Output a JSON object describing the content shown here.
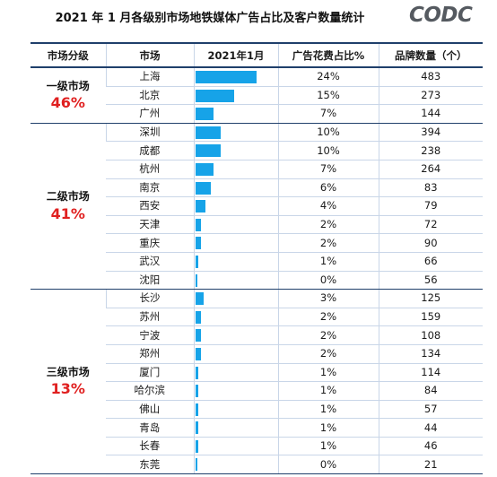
{
  "title": "2021 年 1 月各级别市场地铁媒体广告占比及客户数量统计",
  "logo": "CODC",
  "colors": {
    "bar": "#16a3e8",
    "tier_pct": "#e02020",
    "rule": "#1f3f6b"
  },
  "chart_data": {
    "type": "table",
    "columns": [
      "市场分级",
      "市场",
      "2021年1月",
      "广告花费占比%",
      "品牌数量（个）"
    ],
    "groups": [
      {
        "tier": "一级市场",
        "share": "46%",
        "rows": [
          {
            "city": "上海",
            "bar": 24,
            "share": "24%",
            "brands": "483"
          },
          {
            "city": "北京",
            "bar": 15,
            "share": "15%",
            "brands": "273"
          },
          {
            "city": "广州",
            "bar": 7,
            "share": "7%",
            "brands": "144"
          }
        ]
      },
      {
        "tier": "二级市场",
        "share": "41%",
        "rows": [
          {
            "city": "深圳",
            "bar": 10,
            "share": "10%",
            "brands": "394"
          },
          {
            "city": "成都",
            "bar": 10,
            "share": "10%",
            "brands": "238"
          },
          {
            "city": "杭州",
            "bar": 7,
            "share": "7%",
            "brands": "264"
          },
          {
            "city": "南京",
            "bar": 6,
            "share": "6%",
            "brands": "83"
          },
          {
            "city": "西安",
            "bar": 4,
            "share": "4%",
            "brands": "79"
          },
          {
            "city": "天津",
            "bar": 2,
            "share": "2%",
            "brands": "72"
          },
          {
            "city": "重庆",
            "bar": 2,
            "share": "2%",
            "brands": "90"
          },
          {
            "city": "武汉",
            "bar": 1,
            "share": "1%",
            "brands": "66"
          },
          {
            "city": "沈阳",
            "bar": 0,
            "share": "0%",
            "brands": "56"
          }
        ]
      },
      {
        "tier": "三级市场",
        "share": "13%",
        "rows": [
          {
            "city": "长沙",
            "bar": 3,
            "share": "3%",
            "brands": "125"
          },
          {
            "city": "苏州",
            "bar": 2,
            "share": "2%",
            "brands": "159"
          },
          {
            "city": "宁波",
            "bar": 2,
            "share": "2%",
            "brands": "108"
          },
          {
            "city": "郑州",
            "bar": 2,
            "share": "2%",
            "brands": "134"
          },
          {
            "city": "厦门",
            "bar": 1,
            "share": "1%",
            "brands": "114"
          },
          {
            "city": "哈尔滨",
            "bar": 1,
            "share": "1%",
            "brands": "84"
          },
          {
            "city": "佛山",
            "bar": 1,
            "share": "1%",
            "brands": "57"
          },
          {
            "city": "青岛",
            "bar": 1,
            "share": "1%",
            "brands": "44"
          },
          {
            "city": "长春",
            "bar": 1,
            "share": "1%",
            "brands": "46"
          },
          {
            "city": "东莞",
            "bar": 0,
            "share": "0%",
            "brands": "21"
          }
        ]
      }
    ]
  }
}
